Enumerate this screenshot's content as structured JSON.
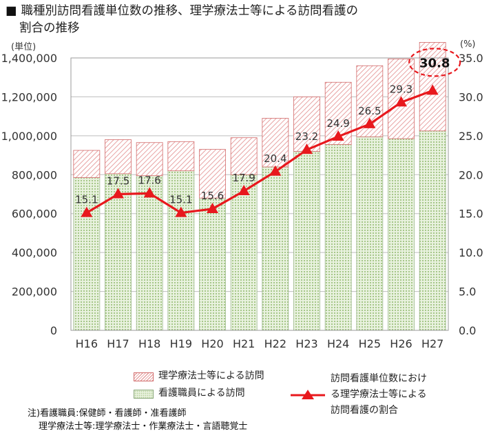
{
  "title": {
    "marker": "■",
    "line1": "職種別訪問看護単位数の推移、理学療法士等による訪問看護の",
    "line2": "割合の推移"
  },
  "chart_data": {
    "type": "bar",
    "stacked": true,
    "categories": [
      "H16",
      "H17",
      "H18",
      "H19",
      "H20",
      "H21",
      "H22",
      "H23",
      "H24",
      "H25",
      "H26",
      "H27"
    ],
    "series": [
      {
        "name": "看護職員による訪問",
        "axis": "left",
        "color": "#c4dbb0",
        "values": [
          785000,
          805000,
          795000,
          820000,
          680000,
          800000,
          840000,
          920000,
          955000,
          995000,
          985000,
          1025000
        ]
      },
      {
        "name": "理学療法士等による訪問",
        "axis": "left",
        "color": "#e8a0a0",
        "values": [
          140000,
          175000,
          170000,
          150000,
          250000,
          190000,
          250000,
          280000,
          320000,
          365000,
          410000,
          455000
        ]
      },
      {
        "name": "訪問看護単位数における理学療法士等による訪問看護の割合",
        "axis": "right",
        "type": "line",
        "color": "#e8181d",
        "values": [
          15.1,
          17.5,
          17.6,
          15.1,
          15.6,
          17.9,
          20.4,
          23.2,
          24.9,
          26.5,
          29.3,
          30.8
        ]
      }
    ],
    "left_axis": {
      "unit_label": "(単位)",
      "ylim": [
        0,
        1400000
      ],
      "ticks": [
        0,
        200000,
        400000,
        600000,
        800000,
        1000000,
        1200000,
        1400000
      ],
      "tick_labels": [
        "0",
        "200,000",
        "400,000",
        "600,000",
        "800,000",
        "1,000,000",
        "1,200,000",
        "1,400,000"
      ]
    },
    "right_axis": {
      "unit_label": "(%)",
      "ylim": [
        0,
        35
      ],
      "ticks": [
        0,
        5,
        10,
        15,
        20,
        25,
        30,
        35
      ],
      "tick_labels": [
        "0.0",
        "5.0",
        "10.0",
        "15.0",
        "20.0",
        "25.0",
        "30.0",
        "35.0"
      ]
    },
    "data_labels": [
      "15.1",
      "17.5",
      "17.6",
      "15.1",
      "15.6",
      "17.9",
      "20.4",
      "23.2",
      "24.9",
      "26.5",
      "29.3",
      "30.8"
    ],
    "highlight_label": "30.8",
    "grid": true
  },
  "legend": {
    "hatch_label": "理学療法士等による訪問",
    "green_label": "看護職員による訪問",
    "line_label_lines": [
      "訪問看護単位数におけ",
      "る理学療法士等による",
      "訪問看護の割合"
    ]
  },
  "notes": {
    "line1": "注)看護職員:保健師・看護師・准看護師",
    "line2": "理学療法士等:理学療法士・作業療法士・言語聴覚士"
  }
}
